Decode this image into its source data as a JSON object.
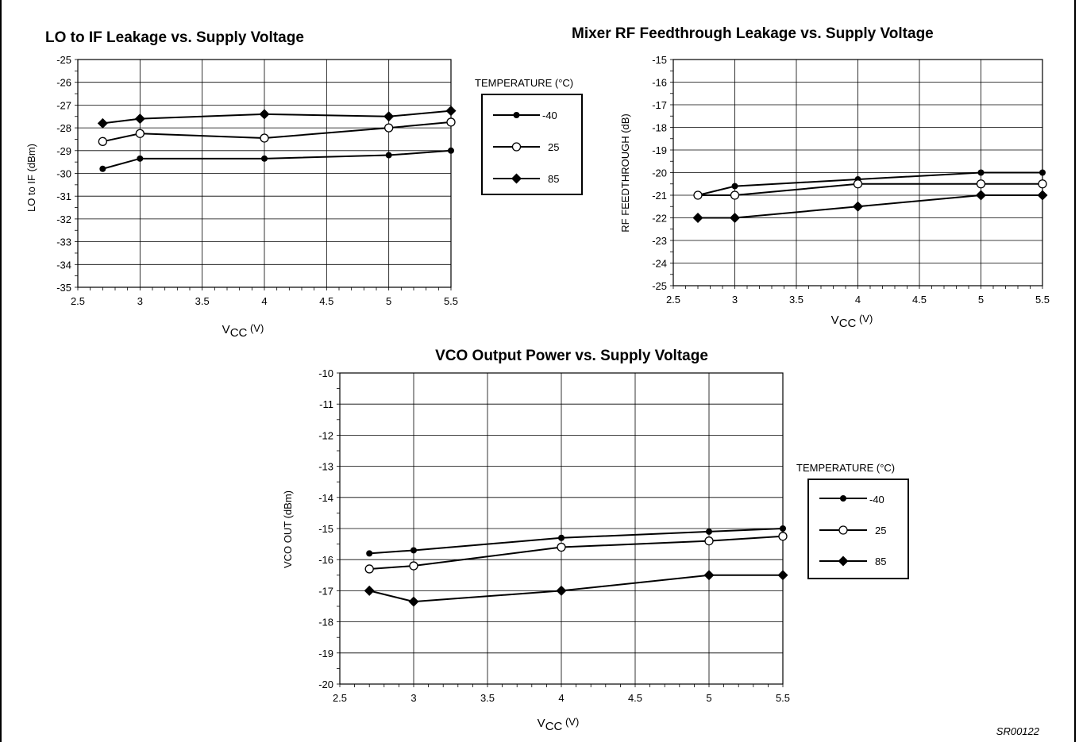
{
  "charts": [
    {
      "title": "LO to IF Leakage vs. Supply Voltage",
      "ylabel": "LO to IF (dBm)",
      "xlabel_main": "V",
      "xlabel_sub": "CC",
      "xlabel_unit": " (V)",
      "x_ticks": [
        "2.5",
        "3",
        "3.5",
        "4",
        "4.5",
        "5",
        "5.5"
      ],
      "y_ticks": [
        "-25",
        "-26",
        "-27",
        "-28",
        "-29",
        "-30",
        "-31",
        "-32",
        "-33",
        "-34",
        "-35"
      ],
      "legend_title": "TEMPERATURE (°C)",
      "legend_entries": [
        "-40",
        "25",
        "85"
      ]
    },
    {
      "title": "Mixer RF Feedthrough Leakage vs. Supply Voltage",
      "ylabel": "RF FEEDTHROUGH (dB)",
      "xlabel_main": "V",
      "xlabel_sub": "CC",
      "xlabel_unit": " (V)",
      "x_ticks": [
        "2.5",
        "3",
        "3.5",
        "4",
        "4.5",
        "5",
        "5.5"
      ],
      "y_ticks": [
        "-15",
        "-16",
        "-17",
        "-18",
        "-19",
        "-20",
        "-21",
        "-22",
        "-23",
        "-24",
        "-25"
      ]
    },
    {
      "title": "VCO Output Power vs. Supply Voltage",
      "ylabel": "VCO OUT (dBm)",
      "xlabel_main": "V",
      "xlabel_sub": "CC",
      "xlabel_unit": " (V)",
      "x_ticks": [
        "2.5",
        "3",
        "3.5",
        "4",
        "4.5",
        "5",
        "5.5"
      ],
      "y_ticks": [
        "-10",
        "-11",
        "-12",
        "-13",
        "-14",
        "-15",
        "-16",
        "-17",
        "-18",
        "-19",
        "-20"
      ],
      "legend_title": "TEMPERATURE (°C)",
      "legend_entries": [
        "-40",
        "25",
        "85"
      ]
    }
  ],
  "figure_code": "SR00122",
  "chart_data": [
    {
      "type": "line",
      "title": "LO to IF Leakage vs. Supply Voltage",
      "xlabel": "VCC (V)",
      "ylabel": "LO to IF (dBm)",
      "xlim": [
        2.5,
        5.5
      ],
      "ylim": [
        -35,
        -25
      ],
      "grid": true,
      "legend": "right-outside",
      "legend_title": "TEMPERATURE (°C)",
      "series": [
        {
          "name": "-40",
          "marker": "dot",
          "x": [
            2.7,
            3,
            4,
            5,
            5.5
          ],
          "y": [
            -29.8,
            -29.35,
            -29.35,
            -29.2,
            -29.0
          ]
        },
        {
          "name": "25",
          "marker": "open-circle",
          "x": [
            2.7,
            3,
            4,
            5,
            5.5
          ],
          "y": [
            -28.6,
            -28.25,
            -28.45,
            -28.0,
            -27.75
          ]
        },
        {
          "name": "85",
          "marker": "diamond",
          "x": [
            2.7,
            3,
            4,
            5,
            5.5
          ],
          "y": [
            -27.8,
            -27.6,
            -27.4,
            -27.5,
            -27.25
          ]
        }
      ]
    },
    {
      "type": "line",
      "title": "Mixer RF Feedthrough Leakage vs. Supply Voltage",
      "xlabel": "VCC (V)",
      "ylabel": "RF FEEDTHROUGH (dB)",
      "xlim": [
        2.5,
        5.5
      ],
      "ylim": [
        -25,
        -15
      ],
      "grid": true,
      "legend": "shared",
      "series": [
        {
          "name": "-40",
          "marker": "dot",
          "x": [
            2.7,
            3,
            4,
            5,
            5.5
          ],
          "y": [
            -21.0,
            -20.6,
            -20.3,
            -20.0,
            -20.0
          ]
        },
        {
          "name": "25",
          "marker": "open-circle",
          "x": [
            2.7,
            3,
            4,
            5,
            5.5
          ],
          "y": [
            -21.0,
            -21.0,
            -20.5,
            -20.5,
            -20.5
          ]
        },
        {
          "name": "85",
          "marker": "diamond",
          "x": [
            2.7,
            3,
            4,
            5,
            5.5
          ],
          "y": [
            -22.0,
            -22.0,
            -21.5,
            -21.0,
            -21.0
          ]
        }
      ]
    },
    {
      "type": "line",
      "title": "VCO Output Power vs. Supply Voltage",
      "xlabel": "VCC (V)",
      "ylabel": "VCO OUT (dBm)",
      "xlim": [
        2.5,
        5.5
      ],
      "ylim": [
        -20,
        -10
      ],
      "grid": true,
      "legend": "right-outside",
      "legend_title": "TEMPERATURE (°C)",
      "series": [
        {
          "name": "-40",
          "marker": "dot",
          "x": [
            2.7,
            3,
            4,
            5,
            5.5
          ],
          "y": [
            -15.8,
            -15.7,
            -15.3,
            -15.1,
            -15.0
          ]
        },
        {
          "name": "25",
          "marker": "open-circle",
          "x": [
            2.7,
            3,
            4,
            5,
            5.5
          ],
          "y": [
            -16.3,
            -16.2,
            -15.6,
            -15.4,
            -15.25
          ]
        },
        {
          "name": "85",
          "marker": "diamond",
          "x": [
            2.7,
            3,
            4,
            5,
            5.5
          ],
          "y": [
            -17.0,
            -17.35,
            -17.0,
            -16.5,
            -16.5
          ]
        }
      ]
    }
  ]
}
